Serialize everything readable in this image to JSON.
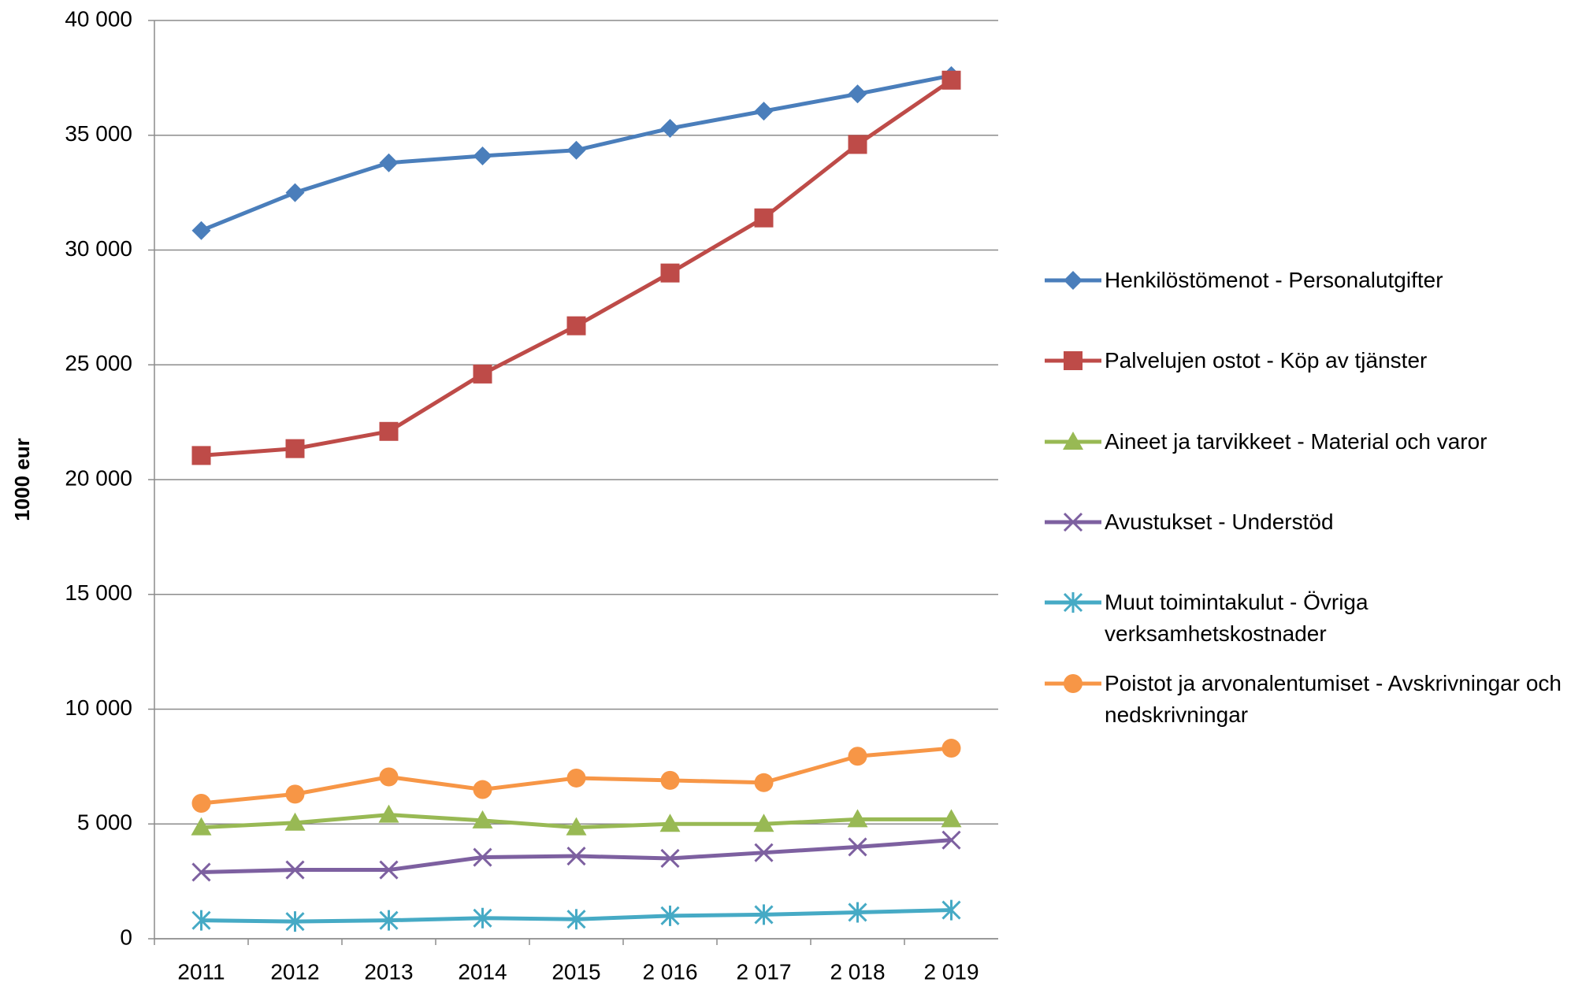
{
  "chart_data": {
    "type": "line",
    "y_label": "1000 eur",
    "categories": [
      "2011",
      "2012",
      "2013",
      "2014",
      "2015",
      "2 016",
      "2 017",
      "2 018",
      "2 019"
    ],
    "ylim": [
      0,
      40000
    ],
    "yticks": [
      0,
      {
        "value": 5000,
        "label": "5 000"
      },
      {
        "value": 10000,
        "label": "10 000"
      },
      {
        "value": 15000,
        "label": "15 000"
      },
      {
        "value": 20000,
        "label": "20 000"
      },
      {
        "value": 25000,
        "label": "25 000"
      },
      {
        "value": 30000,
        "label": "30 000"
      },
      {
        "value": 35000,
        "label": "35 000"
      },
      {
        "value": 40000,
        "label": "40 000"
      }
    ],
    "grid": true,
    "legend": "right",
    "series": [
      {
        "name": "Henkilöstömenot - Personalutgifter",
        "color": "#4a7ebb",
        "marker": "diamond",
        "values": [
          30850,
          32500,
          33800,
          34100,
          34350,
          35300,
          36050,
          36800,
          37600
        ]
      },
      {
        "name": "Palvelujen ostot - Köp av tjänster",
        "color": "#be4b48",
        "marker": "square",
        "values": [
          21050,
          21350,
          22100,
          24600,
          26700,
          29000,
          31400,
          34600,
          37400
        ]
      },
      {
        "name": "Aineet ja tarvikkeet - Material och varor",
        "color": "#98b954",
        "marker": "triangle",
        "values": [
          4850,
          5050,
          5400,
          5150,
          4850,
          5000,
          5000,
          5200,
          5200
        ]
      },
      {
        "name": "Avustukset - Understöd",
        "color": "#7d60a0",
        "marker": "x",
        "values": [
          2900,
          3000,
          3000,
          3550,
          3600,
          3500,
          3750,
          4000,
          4300
        ]
      },
      {
        "name": "Muut toimintakulut - Övriga verksamhetskostnader",
        "color": "#46aac5",
        "marker": "star",
        "values": [
          800,
          750,
          800,
          900,
          850,
          1000,
          1050,
          1150,
          1250
        ]
      },
      {
        "name": "Poistot ja arvonalentumiset - Avskrivningar och nedskrivningar",
        "color": "#f79646",
        "marker": "circle",
        "values": [
          5900,
          6300,
          7050,
          6500,
          7000,
          6900,
          6800,
          7950,
          8300
        ]
      }
    ]
  }
}
